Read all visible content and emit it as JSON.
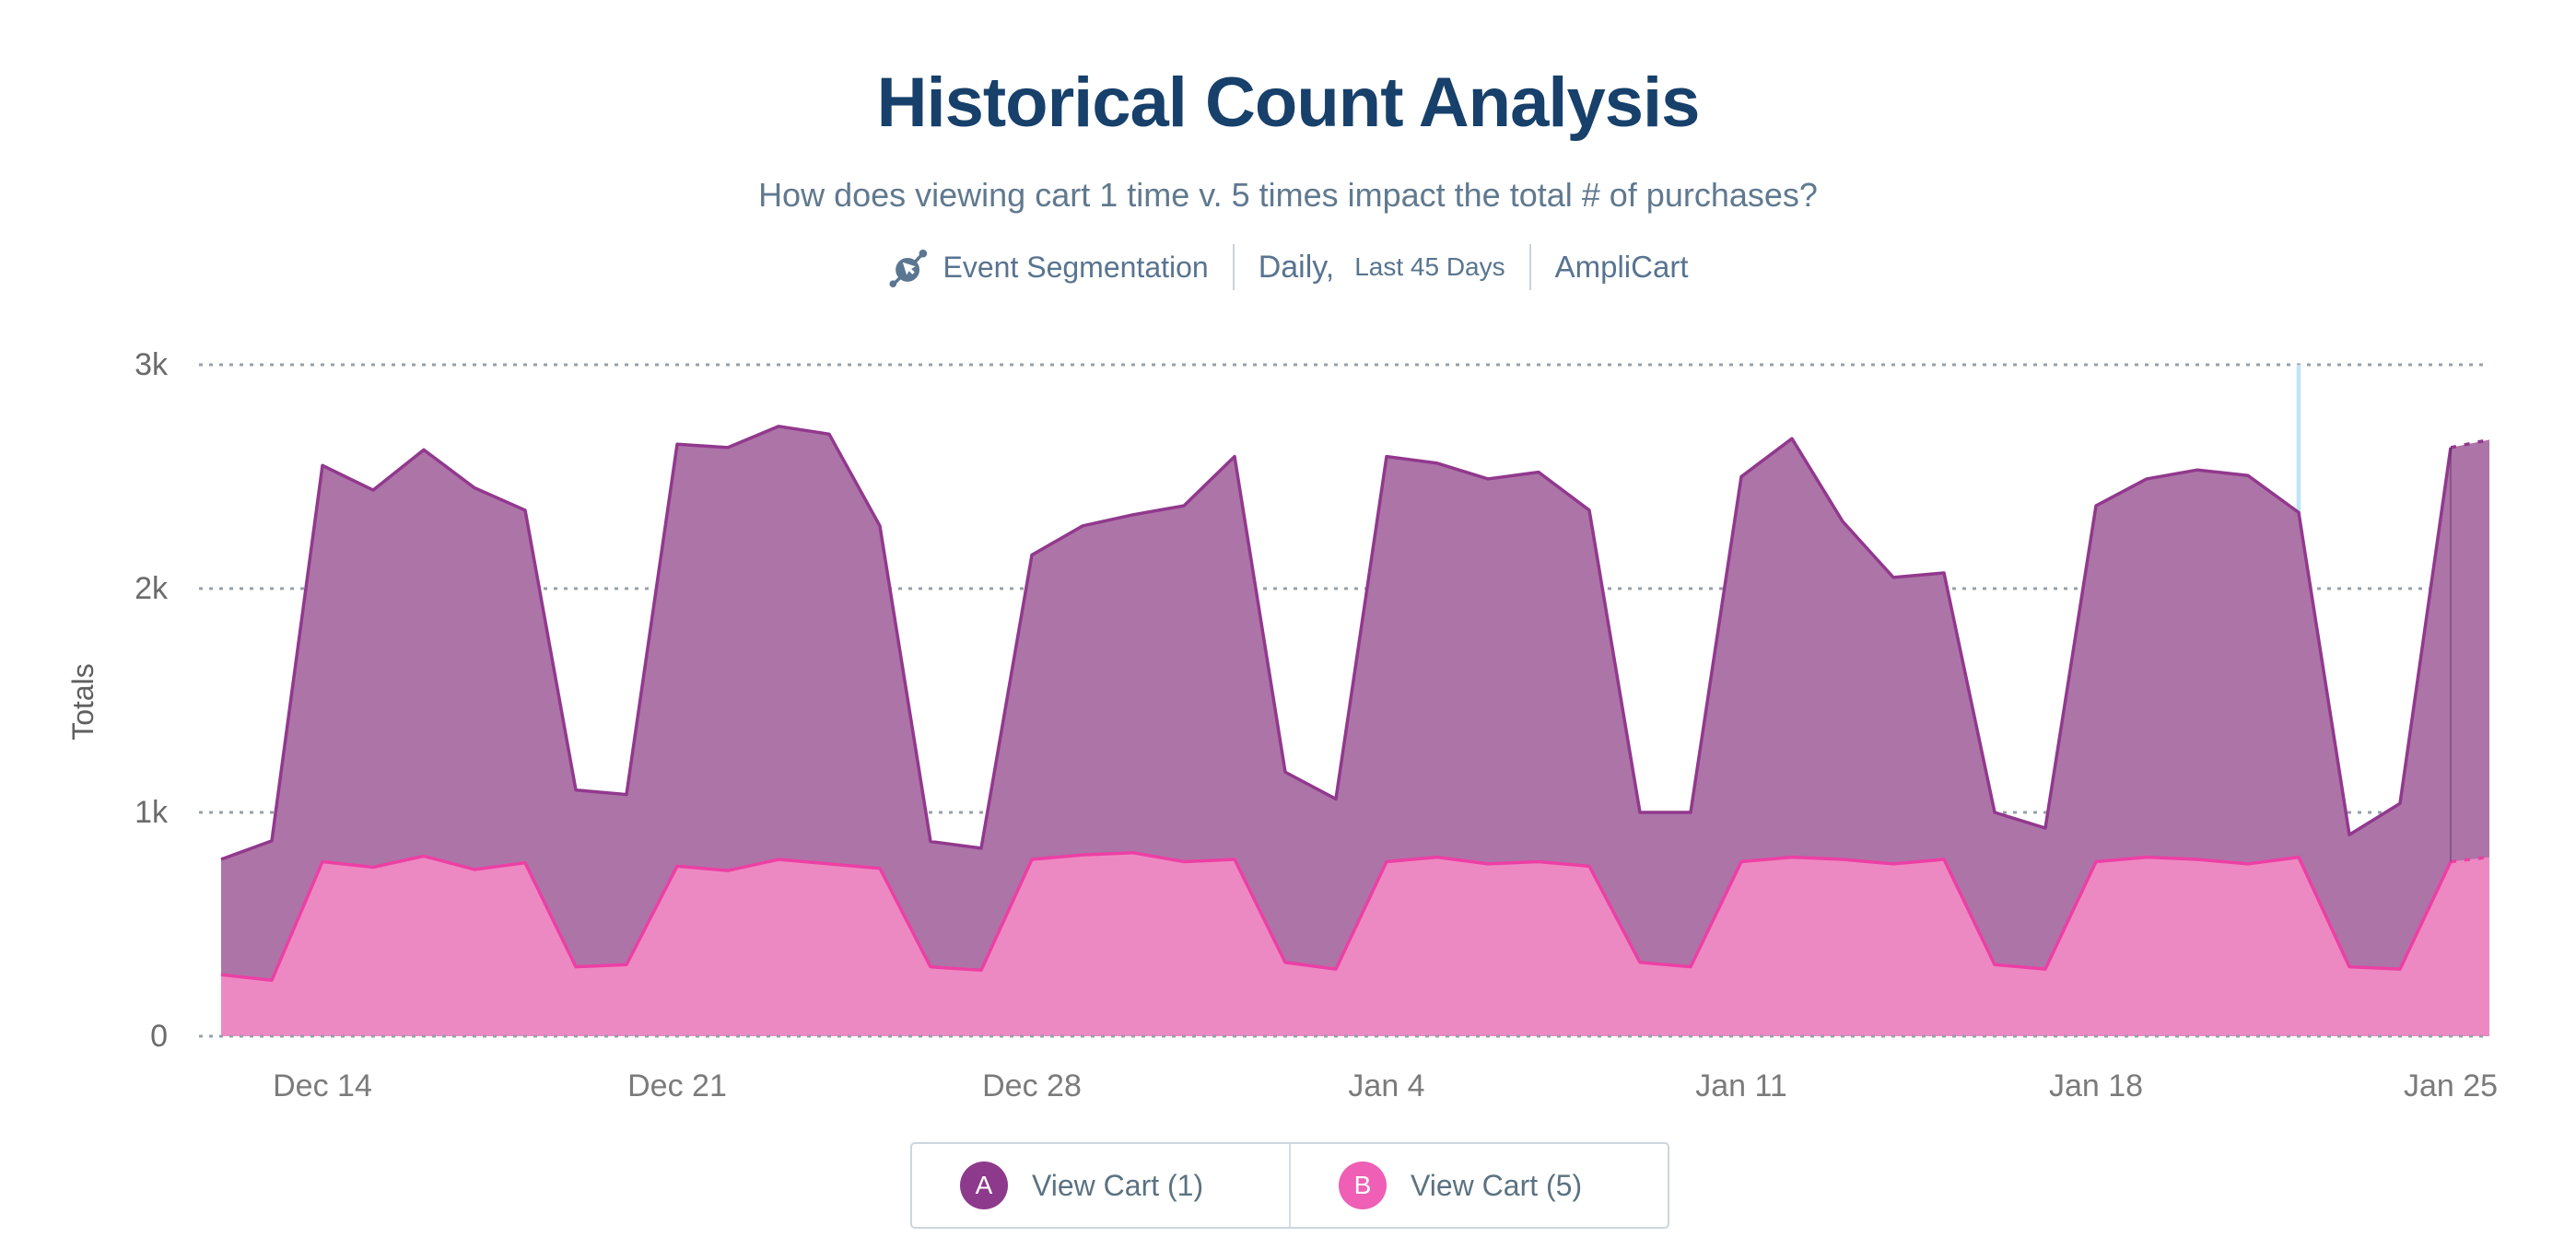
{
  "header": {
    "title": "Historical Count Analysis",
    "subtitle": "How does viewing cart 1 time v. 5 times impact the total # of purchases?",
    "meta": {
      "chart_type": "Event Segmentation",
      "granularity": "Daily,",
      "range": "Last 45 Days",
      "project": "AmpliCart"
    }
  },
  "chart_data": {
    "type": "area",
    "mode": "overlaid",
    "title": "Historical Count Analysis",
    "xlabel": "",
    "ylabel": "Totals",
    "ylim": [
      0,
      3000
    ],
    "grid": "dotted-horizontal",
    "y_ticks": [
      {
        "label": "0",
        "value": 0
      },
      {
        "label": "1k",
        "value": 1000
      },
      {
        "label": "2k",
        "value": 2000
      },
      {
        "label": "3k",
        "value": 3000
      }
    ],
    "days": 45,
    "start_date": "Dec 12",
    "end_date": "Jan 25",
    "x_ticks": [
      {
        "label": "Dec 14",
        "day": 2
      },
      {
        "label": "Dec 21",
        "day": 9
      },
      {
        "label": "Dec 28",
        "day": 16
      },
      {
        "label": "Jan 4",
        "day": 23
      },
      {
        "label": "Jan 11",
        "day": 30
      },
      {
        "label": "Jan 18",
        "day": 37
      },
      {
        "label": "Jan 25",
        "day": 44
      }
    ],
    "annotation_line_day": 41,
    "series": [
      {
        "name": "View Cart (1)",
        "fill": "#AD74A8",
        "stroke": "#91398D",
        "values": [
          790,
          873,
          2550,
          2440,
          2620,
          2450,
          2350,
          1100,
          1080,
          2645,
          2630,
          2725,
          2690,
          2280,
          870,
          840,
          2150,
          2280,
          2330,
          2370,
          2590,
          1180,
          1060,
          2590,
          2560,
          2490,
          2520,
          2350,
          1000,
          1000,
          2500,
          2670,
          2300,
          2050,
          2070,
          1000,
          930,
          2370,
          2490,
          2530,
          2505,
          2340,
          900,
          1040,
          2630
        ],
        "partial_extension_value": 2665
      },
      {
        "name": "View Cart (5)",
        "fill": "#ED89C2",
        "stroke": "#ED3FA4",
        "values": [
          275,
          250,
          780,
          755,
          805,
          745,
          775,
          310,
          320,
          760,
          740,
          790,
          770,
          750,
          310,
          295,
          790,
          810,
          820,
          780,
          790,
          330,
          300,
          780,
          800,
          770,
          780,
          760,
          330,
          310,
          780,
          800,
          790,
          770,
          790,
          320,
          300,
          780,
          800,
          790,
          770,
          800,
          310,
          300,
          780
        ],
        "partial_extension_value": 800
      }
    ],
    "colors": {
      "gridline": "#98a0a8",
      "annotation_line": "#BFE4F7",
      "axis_tick_text": "#6b6b6b",
      "x_tick_text": "#7b7b7b",
      "partial_marker": "rgba(70,35,80,0.35)"
    },
    "legend_position": "bottom-center"
  },
  "legend": {
    "items": [
      {
        "badge": "A",
        "label": "View Cart (1)",
        "color": "#8E3A8C"
      },
      {
        "badge": "B",
        "label": "View Cart (5)",
        "color": "#EE5FB5"
      }
    ]
  }
}
